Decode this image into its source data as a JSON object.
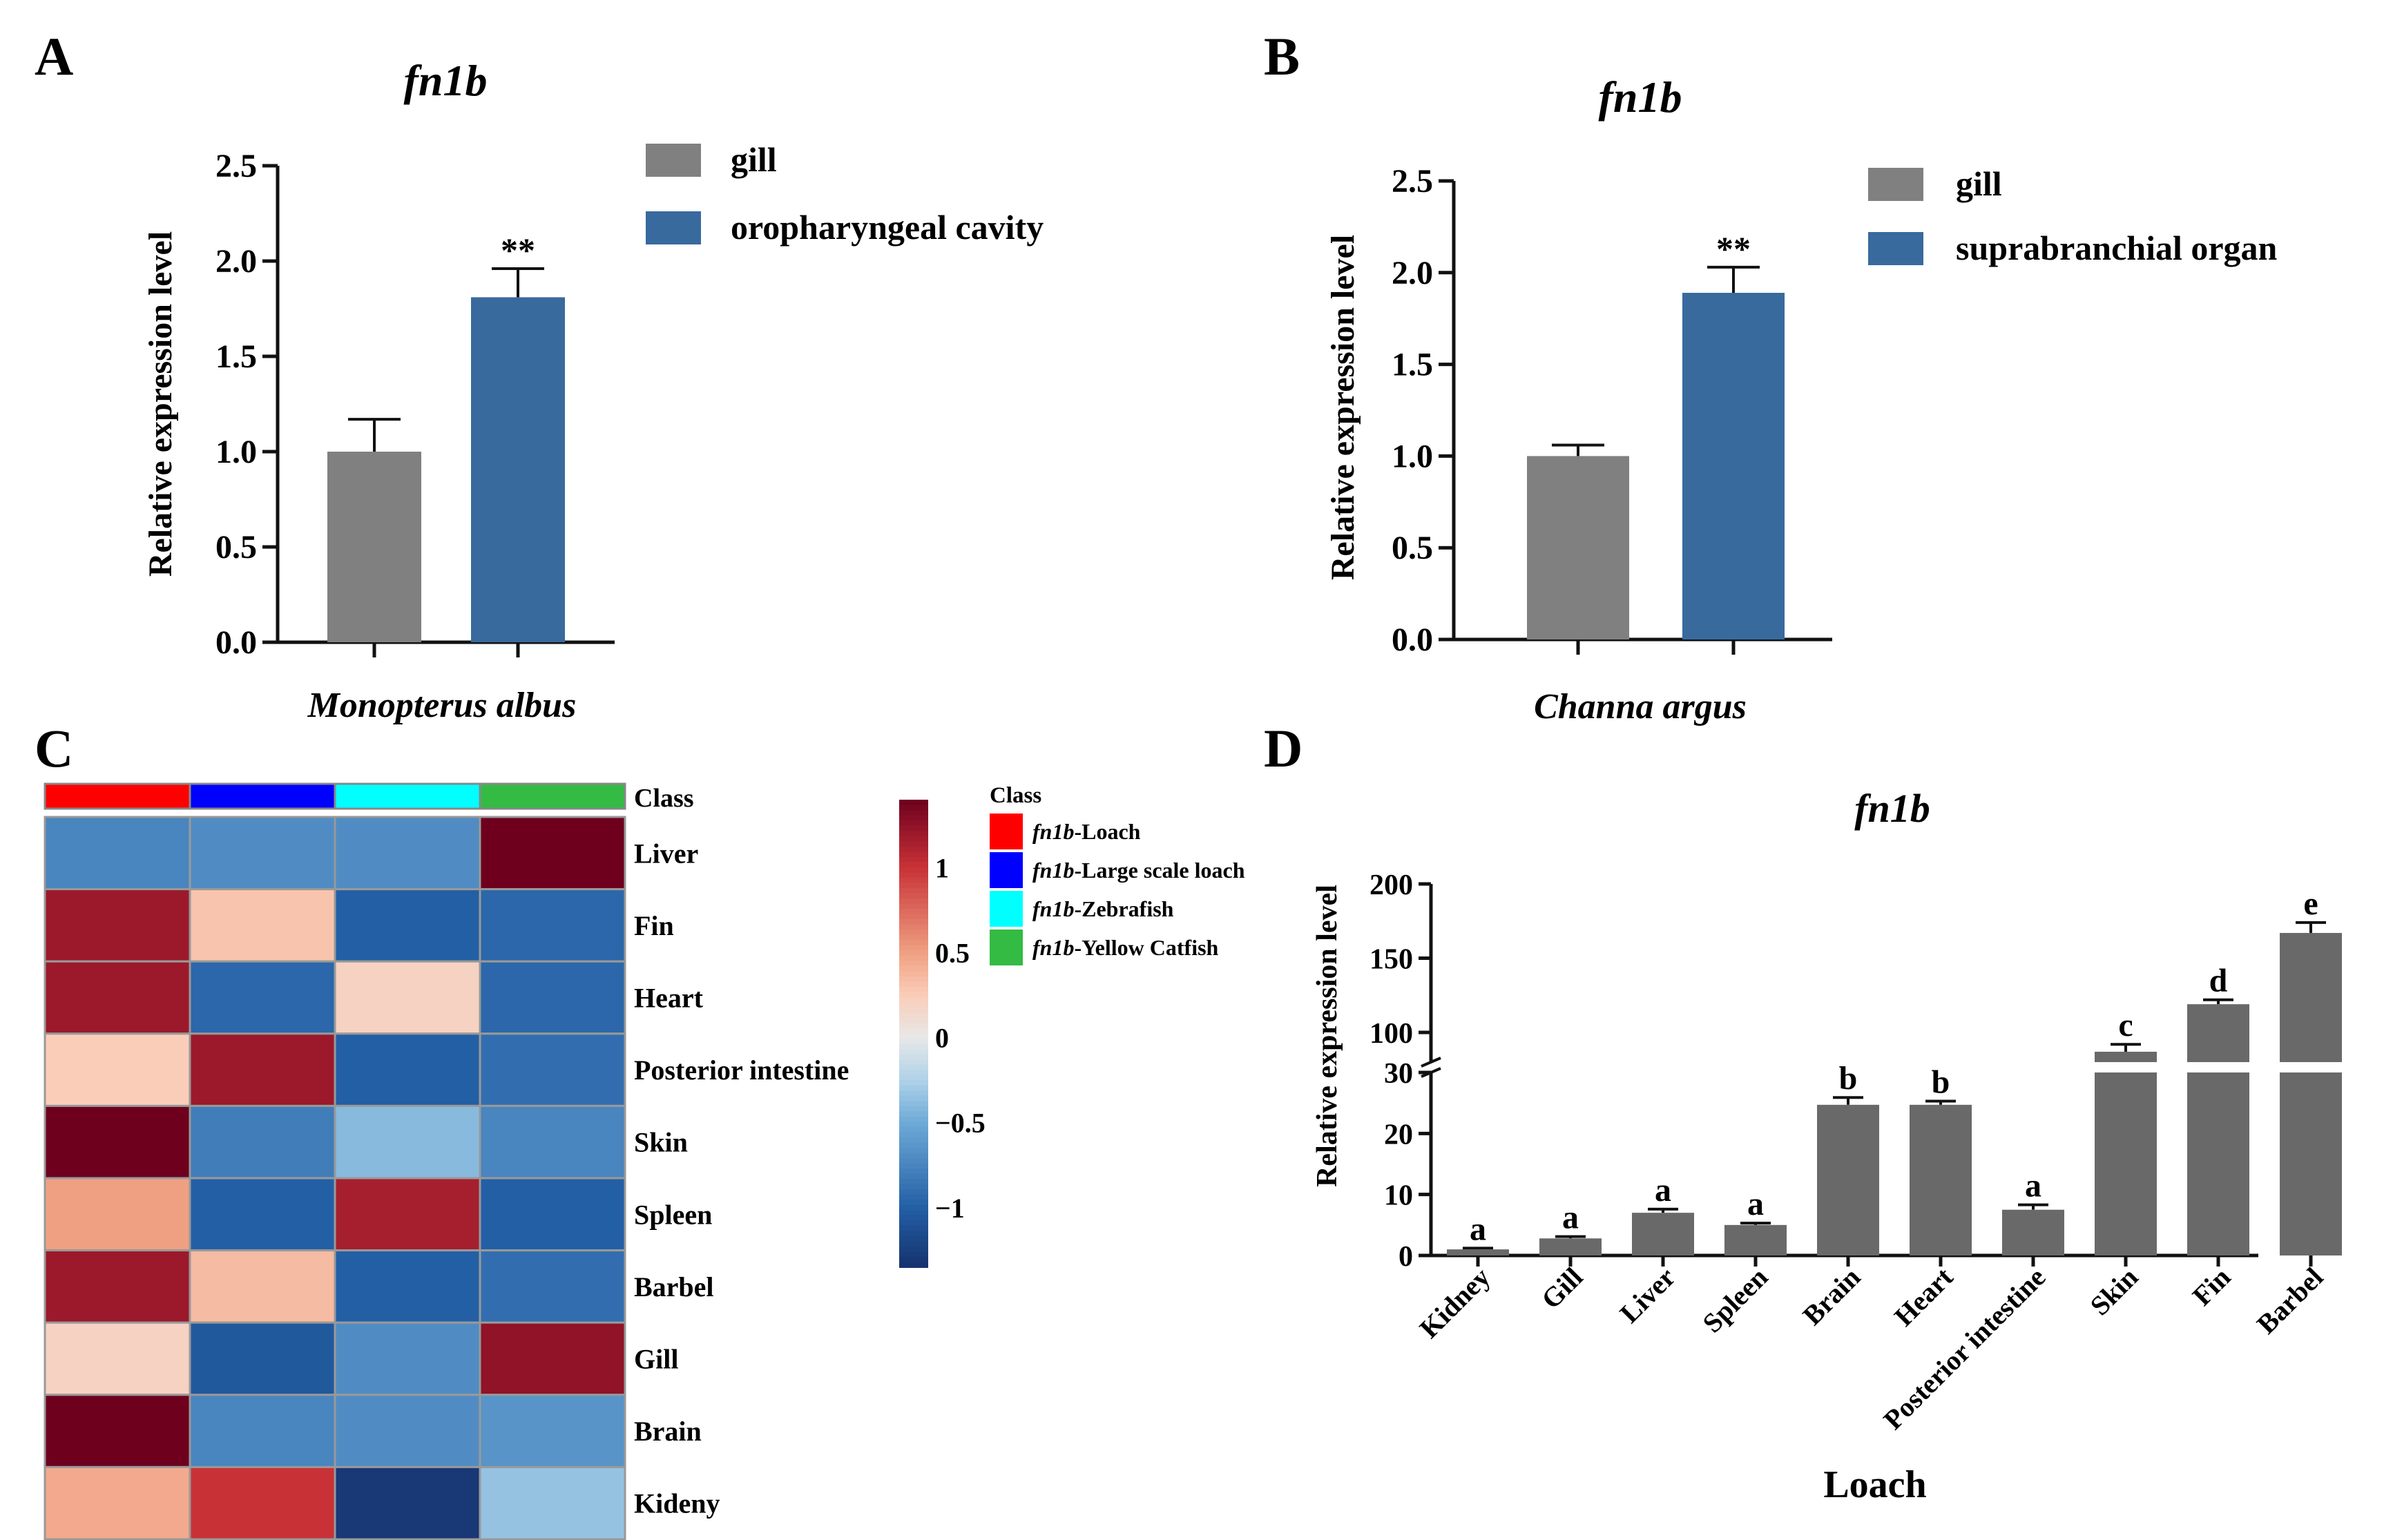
{
  "colors": {
    "gill": "#808080",
    "blue_bar": "#386a9e",
    "loach_bar": "#696969",
    "axis": "#111111",
    "class_loach": "#ff0000",
    "class_large_scale_loach": "#0000ff",
    "class_zebrafish": "#00ffff",
    "class_yellow_catfish": "#33bb44"
  },
  "panels": {
    "A": {
      "letter": "A"
    },
    "B": {
      "letter": "B"
    },
    "C": {
      "letter": "C"
    },
    "D": {
      "letter": "D"
    }
  },
  "chart_data": [
    {
      "id": "A",
      "type": "bar",
      "title": "fn1b",
      "xlabel": "Monopterus albus",
      "ylabel": "Relative expression level",
      "ylim": [
        0,
        2.5
      ],
      "yticks": [
        "0.0",
        "0.5",
        "1.0",
        "1.5",
        "2.0",
        "2.5"
      ],
      "categories": [
        "gill",
        "oropharyngeal cavity"
      ],
      "values": [
        1.0,
        1.81
      ],
      "errors": [
        0.17,
        0.15
      ],
      "annotation": "**",
      "legend": [
        "gill",
        "oropharyngeal cavity"
      ],
      "legend_position": "top-right"
    },
    {
      "id": "B",
      "type": "bar",
      "title": "fn1b",
      "xlabel": "Channa argus",
      "ylabel": "Relative expression level",
      "ylim": [
        0,
        2.5
      ],
      "yticks": [
        "0.0",
        "0.5",
        "1.0",
        "1.5",
        "2.0",
        "2.5"
      ],
      "categories": [
        "gill",
        "suprabranchial organ"
      ],
      "values": [
        1.0,
        1.89
      ],
      "errors": [
        0.06,
        0.14
      ],
      "annotation": "**",
      "legend": [
        "gill",
        "suprabranchial organ"
      ],
      "legend_position": "top-right"
    },
    {
      "id": "C",
      "type": "heatmap",
      "columns": [
        "fn1b-Loach",
        "fn1b-Large scale loach",
        "fn1b-Zebrafish",
        "fn1b-Yellow Catfish"
      ],
      "column_label": "Class",
      "rows": [
        "Liver",
        "Fin",
        "Heart",
        "Posterior intestine",
        "Skin",
        "Spleen",
        "Barbel",
        "Gill",
        "Brain",
        "Kideny"
      ],
      "values": [
        [
          -0.75,
          -0.7,
          -0.7,
          1.4
        ],
        [
          1.2,
          0.3,
          -1.0,
          -0.95
        ],
        [
          1.2,
          -0.95,
          0.2,
          -0.95
        ],
        [
          0.25,
          1.2,
          -1.0,
          -0.9
        ],
        [
          1.4,
          -0.8,
          -0.4,
          -0.75
        ],
        [
          0.5,
          -1.0,
          1.15,
          -1.0
        ],
        [
          1.2,
          0.35,
          -1.0,
          -0.9
        ],
        [
          0.2,
          -1.05,
          -0.7,
          1.25
        ],
        [
          1.4,
          -0.75,
          -0.7,
          -0.65
        ],
        [
          0.45,
          1.0,
          -1.3,
          -0.35
        ]
      ],
      "scale_ticks": [
        "1",
        "0.5",
        "0",
        "−0.5",
        "−1"
      ],
      "scale_tick_values": [
        1,
        0.5,
        0,
        -0.5,
        -1
      ],
      "scale_range": [
        -1.35,
        1.4
      ],
      "legend_title": "Class",
      "legend_items": [
        {
          "italic": "fn1b",
          "rest": "-Loach"
        },
        {
          "italic": "fn1b",
          "rest": "-Large scale loach"
        },
        {
          "italic": "fn1b",
          "rest": "-Zebrafish"
        },
        {
          "italic": "fn1b",
          "rest": "-Yellow Catfish"
        }
      ]
    },
    {
      "id": "D",
      "type": "bar",
      "title": "fn1b",
      "xlabel": "Loach",
      "ylabel": "Relative expression level",
      "axis_break": [
        30,
        80
      ],
      "yticks": [
        "0",
        "10",
        "20",
        "30",
        "100",
        "150",
        "200"
      ],
      "ytick_values": [
        0,
        10,
        20,
        30,
        100,
        150,
        200
      ],
      "categories": [
        "Kidney",
        "Gill",
        "Liver",
        "Spleen",
        "Brain",
        "Heart",
        "Posterior intestine",
        "Skin",
        "Fin",
        "Barbel"
      ],
      "values": [
        1.0,
        2.8,
        7.0,
        5.0,
        24.7,
        24.7,
        7.5,
        87,
        119,
        167
      ],
      "errors": [
        0.2,
        0.3,
        0.6,
        0.3,
        1.2,
        0.6,
        0.8,
        5,
        3,
        7
      ],
      "letters": [
        "a",
        "a",
        "a",
        "a",
        "b",
        "b",
        "a",
        "c",
        "d",
        "e"
      ]
    }
  ]
}
